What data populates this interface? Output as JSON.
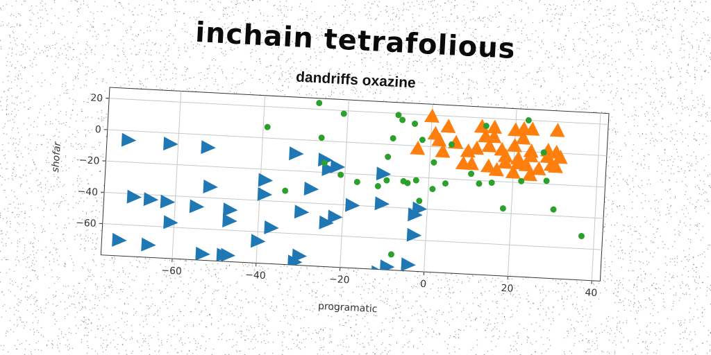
{
  "chart_data": {
    "type": "scatter",
    "title": "inchain tetrafolious",
    "subtitle": "dandriffs oxazine",
    "xlabel": "programatic",
    "ylabel": "shofar",
    "xlim": [
      -77,
      42
    ],
    "ylim": [
      -80,
      27
    ],
    "xticks": [
      -60,
      -40,
      -20,
      0,
      20,
      40
    ],
    "yticks": [
      20,
      0,
      -20,
      -40,
      -60
    ],
    "xtick_labels": [
      "−60",
      "−40",
      "−20",
      "0",
      "20",
      "40"
    ],
    "ytick_labels": [
      "20",
      "0",
      "−20",
      "−40",
      "−60"
    ],
    "grid": true,
    "series": [
      {
        "marker": "triangle-right",
        "color": "#1f77b4",
        "points": [
          [
            -72,
            -6
          ],
          [
            -62,
            -7
          ],
          [
            -53,
            -8
          ],
          [
            -32,
            -9
          ],
          [
            -25,
            -12
          ],
          [
            -22,
            -16
          ],
          [
            -24,
            -18
          ],
          [
            -11,
            -19
          ],
          [
            -39,
            -27
          ],
          [
            -28,
            -31
          ],
          [
            -52,
            -33
          ],
          [
            -39,
            -36
          ],
          [
            -11,
            -38
          ],
          [
            -18,
            -40
          ],
          [
            -2,
            -40
          ],
          [
            -3,
            -44
          ],
          [
            -70,
            -42
          ],
          [
            -66,
            -43
          ],
          [
            -62,
            -44
          ],
          [
            -55,
            -46
          ],
          [
            -47,
            -47
          ],
          [
            -30,
            -46
          ],
          [
            -22,
            -48
          ],
          [
            -24,
            -52
          ],
          [
            -47,
            -54
          ],
          [
            -37,
            -57
          ],
          [
            -61,
            -57
          ],
          [
            -3,
            -57
          ],
          [
            -40,
            -66
          ],
          [
            -73,
            -70
          ],
          [
            -66,
            -72
          ],
          [
            -53,
            -76
          ],
          [
            -48,
            -76
          ],
          [
            -47,
            -76
          ],
          [
            -30,
            -74
          ],
          [
            -31,
            -78
          ],
          [
            -9,
            -78
          ],
          [
            -11,
            -82
          ],
          [
            -4,
            -76
          ]
        ]
      },
      {
        "marker": "triangle-up",
        "color": "#ff7f0e",
        "points": [
          [
            0,
            19
          ],
          [
            4,
            13
          ],
          [
            12,
            14
          ],
          [
            15,
            14
          ],
          [
            20,
            13
          ],
          [
            22,
            14
          ],
          [
            24,
            14
          ],
          [
            30,
            14
          ],
          [
            1,
            8
          ],
          [
            13,
            8
          ],
          [
            15,
            8
          ],
          [
            22,
            8
          ],
          [
            2,
            4
          ],
          [
            6,
            3
          ],
          [
            11,
            0
          ],
          [
            14,
            2
          ],
          [
            17,
            0
          ],
          [
            20,
            3
          ],
          [
            24,
            0
          ],
          [
            28,
            1
          ],
          [
            30,
            0
          ],
          [
            -3,
            -2
          ],
          [
            3,
            -3
          ],
          [
            9,
            -2
          ],
          [
            18,
            -4
          ],
          [
            21,
            -5
          ],
          [
            24,
            -3
          ],
          [
            28,
            -3
          ],
          [
            31,
            -3
          ],
          [
            8,
            -10
          ],
          [
            10,
            -10
          ],
          [
            14,
            -11
          ],
          [
            16,
            -13
          ],
          [
            18,
            -8
          ],
          [
            21,
            -8
          ],
          [
            23,
            -9
          ],
          [
            26,
            -11
          ],
          [
            30,
            -9
          ],
          [
            20,
            -14
          ],
          [
            24,
            -15
          ],
          [
            29,
            -8
          ]
        ]
      },
      {
        "marker": "circle",
        "color": "#2ca02c",
        "points": [
          [
            -27,
            24
          ],
          [
            -21,
            18
          ],
          [
            -8,
            19
          ],
          [
            -7,
            16
          ],
          [
            -4,
            14
          ],
          [
            13,
            15
          ],
          [
            23,
            20
          ],
          [
            -39,
            7
          ],
          [
            -9,
            4
          ],
          [
            -26,
            2
          ],
          [
            -2,
            4
          ],
          [
            5,
            2
          ],
          [
            27,
            0
          ],
          [
            -10,
            -8
          ],
          [
            1,
            -10
          ],
          [
            -25,
            -14
          ],
          [
            -6,
            -23
          ],
          [
            -5,
            -24
          ],
          [
            -3,
            -22
          ],
          [
            -10,
            -23
          ],
          [
            1,
            -27
          ],
          [
            -17,
            -25
          ],
          [
            4,
            -23
          ],
          [
            15,
            -21
          ],
          [
            10,
            -16
          ],
          [
            22,
            -19
          ],
          [
            18,
            -37
          ],
          [
            30,
            -36
          ],
          [
            -34,
            -33
          ],
          [
            37,
            -52
          ],
          [
            -2,
            -35
          ],
          [
            -21,
            -21
          ],
          [
            -8,
            -70
          ],
          [
            -12,
            -27
          ],
          [
            12,
            -22
          ],
          [
            28,
            -18
          ]
        ]
      }
    ]
  }
}
